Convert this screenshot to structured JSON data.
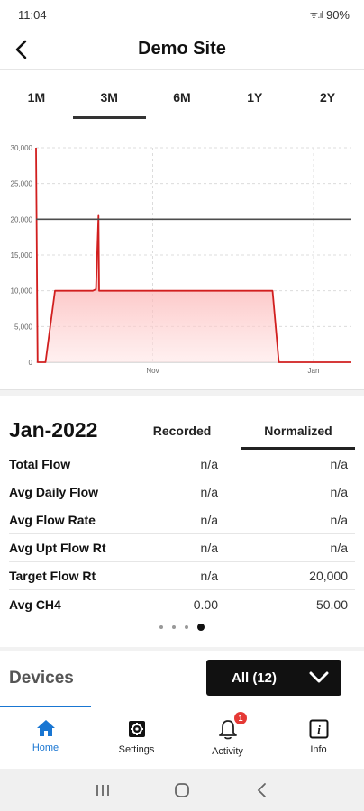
{
  "status": {
    "time": "11:04",
    "signal": "ᯤ.ıl",
    "battery": "90%"
  },
  "header": {
    "title": "Demo Site"
  },
  "range_tabs": [
    {
      "label": "1M",
      "active": false
    },
    {
      "label": "3M",
      "active": true
    },
    {
      "label": "6M",
      "active": false
    },
    {
      "label": "1Y",
      "active": false
    },
    {
      "label": "2Y",
      "active": false
    }
  ],
  "chart_data": {
    "type": "area",
    "x_ticks": [
      "Nov",
      "Jan"
    ],
    "y_ticks": [
      "0",
      "5,000",
      "10,000",
      "15,000",
      "20,000",
      "25,000",
      "30,000"
    ],
    "ylim": [
      0,
      30000
    ],
    "series": [
      {
        "x": [
          0,
          0.5,
          3,
          6,
          18,
          19,
          19.8,
          20,
          22,
          75,
          77,
          100
        ],
        "y": [
          30000,
          0,
          0,
          10000,
          10000,
          10200,
          20500,
          10000,
          10000,
          10000,
          0,
          0
        ]
      }
    ],
    "target_line": 20000,
    "grid": true,
    "colors": {
      "line": "#d11f1f",
      "fill_top": "#f44a4a",
      "fill_bottom": "#ffe6e6",
      "target": "#4d4d4d"
    }
  },
  "summary": {
    "month": "Jan-2022",
    "col_recorded": "Recorded",
    "col_normalized": "Normalized",
    "rows": [
      {
        "label": "Total Flow",
        "recorded": "n/a",
        "normalized": "n/a"
      },
      {
        "label": "Avg Daily Flow",
        "recorded": "n/a",
        "normalized": "n/a"
      },
      {
        "label": "Avg Flow Rate",
        "recorded": "n/a",
        "normalized": "n/a"
      },
      {
        "label": "Avg Upt Flow Rt",
        "recorded": "n/a",
        "normalized": "n/a"
      },
      {
        "label": "Target Flow Rt",
        "recorded": "n/a",
        "normalized": "20,000"
      },
      {
        "label": "Avg CH4",
        "recorded": "0.00",
        "normalized": "50.00"
      }
    ],
    "page_dots": 4,
    "active_dot": 3
  },
  "devices": {
    "label": "Devices",
    "select_value": "All (12)"
  },
  "bottom_nav": [
    {
      "label": "Home",
      "icon": "home-icon",
      "active": true
    },
    {
      "label": "Settings",
      "icon": "settings-icon",
      "active": false
    },
    {
      "label": "Activity",
      "icon": "bell-icon",
      "active": false,
      "badge": "1"
    },
    {
      "label": "Info",
      "icon": "info-icon",
      "active": false
    }
  ],
  "accent_color": "#1976d2"
}
